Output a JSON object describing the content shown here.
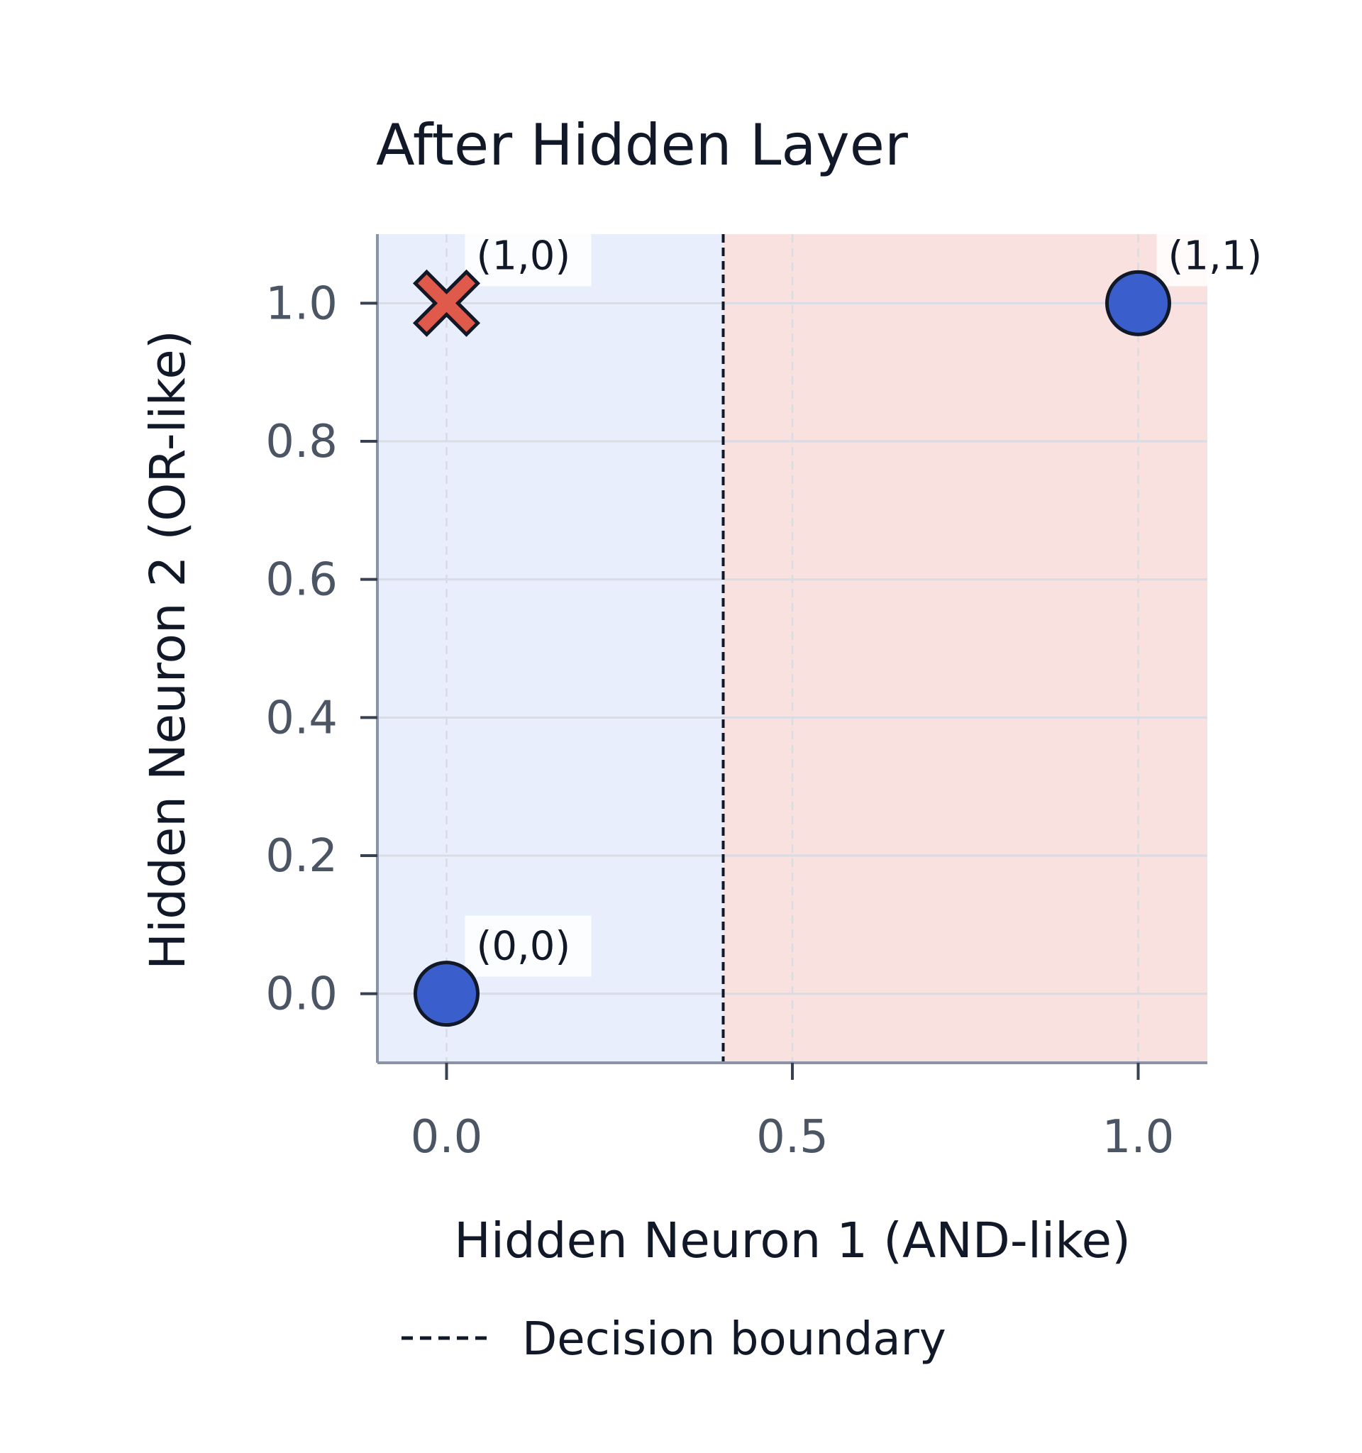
{
  "chart_data": {
    "type": "scatter",
    "title": "After Hidden Layer",
    "xlabel": "Hidden Neuron 1 (AND-like)",
    "ylabel": "Hidden Neuron 2 (OR-like)",
    "xlim": [
      -0.1,
      1.1
    ],
    "ylim": [
      -0.1,
      1.1
    ],
    "xticks": [
      "0.0",
      "0.5",
      "1.0"
    ],
    "yticks": [
      "0.0",
      "0.2",
      "0.4",
      "0.6",
      "0.8",
      "1.0"
    ],
    "grid": true,
    "decision_boundary_x": 0.4,
    "regions": {
      "left_color": "#e8eefc",
      "right_color": "#f9e1df"
    },
    "points": [
      {
        "label": "(0,0)",
        "x": 0.0,
        "y": 0.0,
        "marker": "circle",
        "color": "#3a5fcd"
      },
      {
        "label": "(1,0)",
        "x": 0.0,
        "y": 1.0,
        "marker": "x",
        "color": "#e05a4b"
      },
      {
        "label": "(1,1)",
        "x": 1.0,
        "y": 1.0,
        "marker": "circle",
        "color": "#3a5fcd"
      }
    ],
    "legend": {
      "label": "Decision boundary",
      "placement": "bottom"
    }
  }
}
